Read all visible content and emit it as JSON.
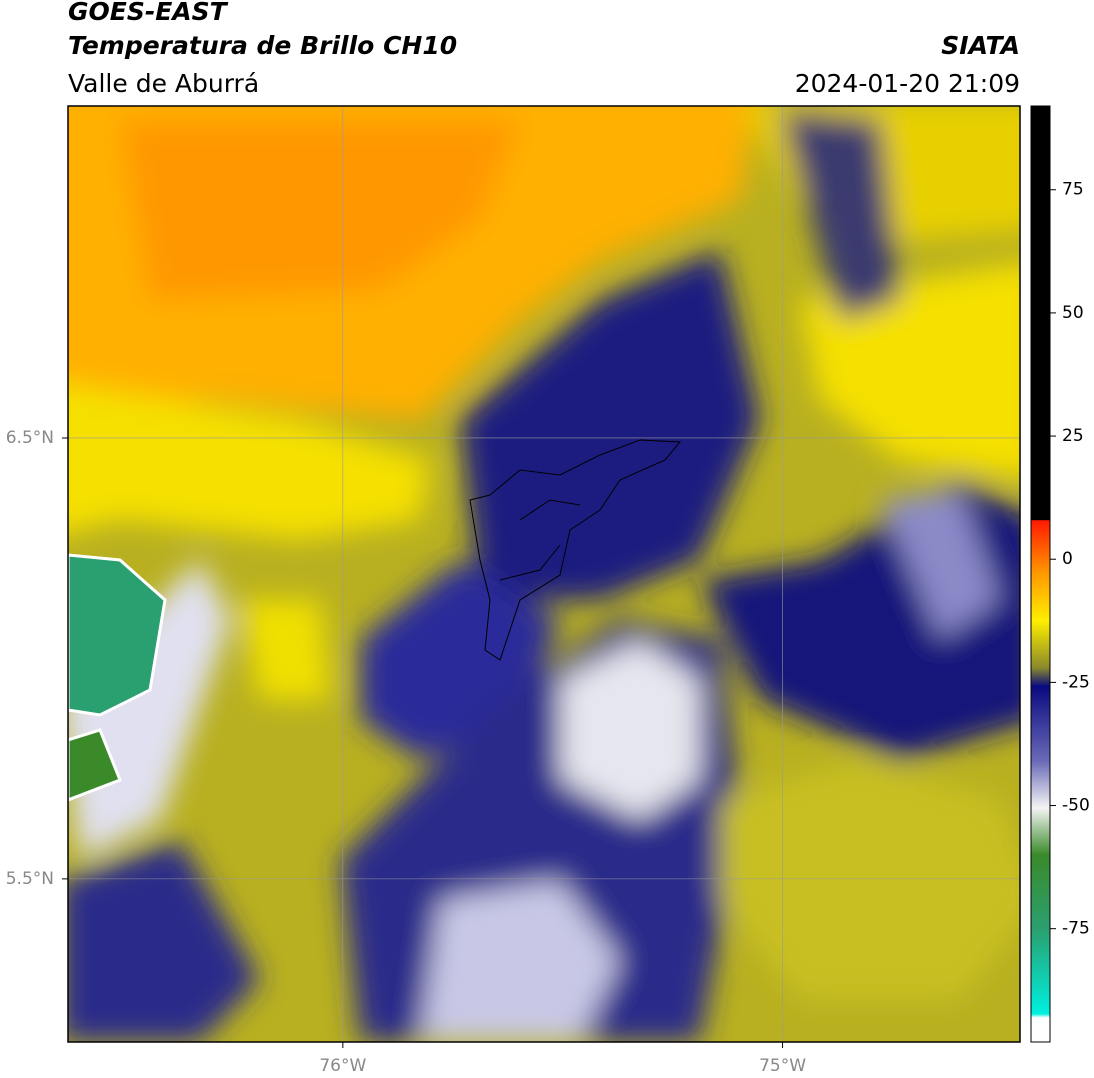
{
  "header": {
    "title": "GOES-EAST",
    "subtitle": "Temperatura de Brillo CH10",
    "region": "Valle de Aburrá",
    "source": "SIATA",
    "datetime": "2024-01-20 21:09"
  },
  "map": {
    "xlim": [
      -76.625,
      -74.46
    ],
    "ylim": [
      5.13,
      7.253
    ],
    "xticks": [
      {
        "value": -76,
        "label": "76°W"
      },
      {
        "value": -75,
        "label": "75°W"
      }
    ],
    "yticks": [
      {
        "value": 6.5,
        "label": "6.5°N"
      },
      {
        "value": 5.5,
        "label": "5.5°N"
      }
    ]
  },
  "colorbar": {
    "lim": [
      -98,
      92
    ],
    "ticks": [
      75,
      50,
      25,
      0,
      -25,
      -50,
      -75
    ]
  }
}
